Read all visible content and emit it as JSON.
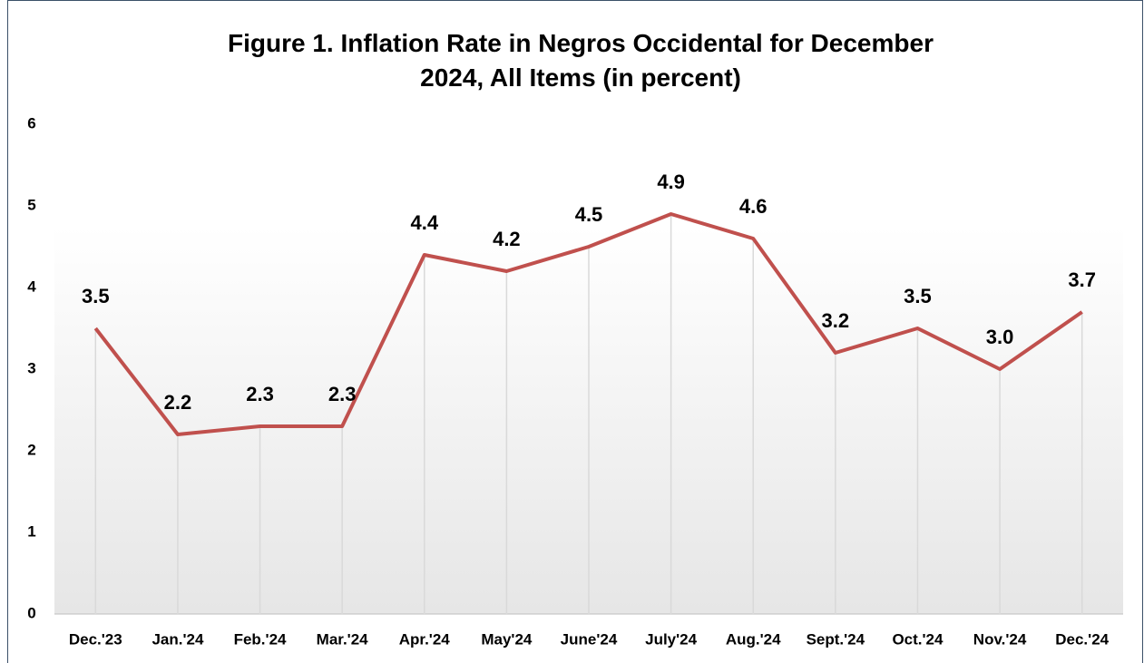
{
  "chart_data": {
    "type": "line",
    "title": "Figure 1. Inflation Rate in Negros Occidental for December 2024, All Items (in percent)",
    "categories": [
      "Dec.'23",
      "Jan.'24",
      "Feb.'24",
      "Mar.'24",
      "Apr.'24",
      "May'24",
      "June'24",
      "July'24",
      "Aug.'24",
      "Sept.'24",
      "Oct.'24",
      "Nov.'24",
      "Dec.'24"
    ],
    "series": [
      {
        "name": "Inflation Rate",
        "color": "#c0504d",
        "values": [
          3.5,
          2.2,
          2.3,
          2.3,
          4.4,
          4.2,
          4.5,
          4.9,
          4.6,
          3.2,
          3.5,
          3.0,
          3.7
        ],
        "value_labels": [
          "3.5",
          "2.2",
          "2.3",
          "2.3",
          "4.4",
          "4.2",
          "4.5",
          "4.9",
          "4.6",
          "3.2",
          "3.5",
          "3.0",
          "3.7"
        ]
      }
    ],
    "ylim": [
      0,
      6
    ],
    "yticks": [
      0,
      1,
      2,
      3,
      4,
      5,
      6
    ],
    "drop_lines": true
  }
}
